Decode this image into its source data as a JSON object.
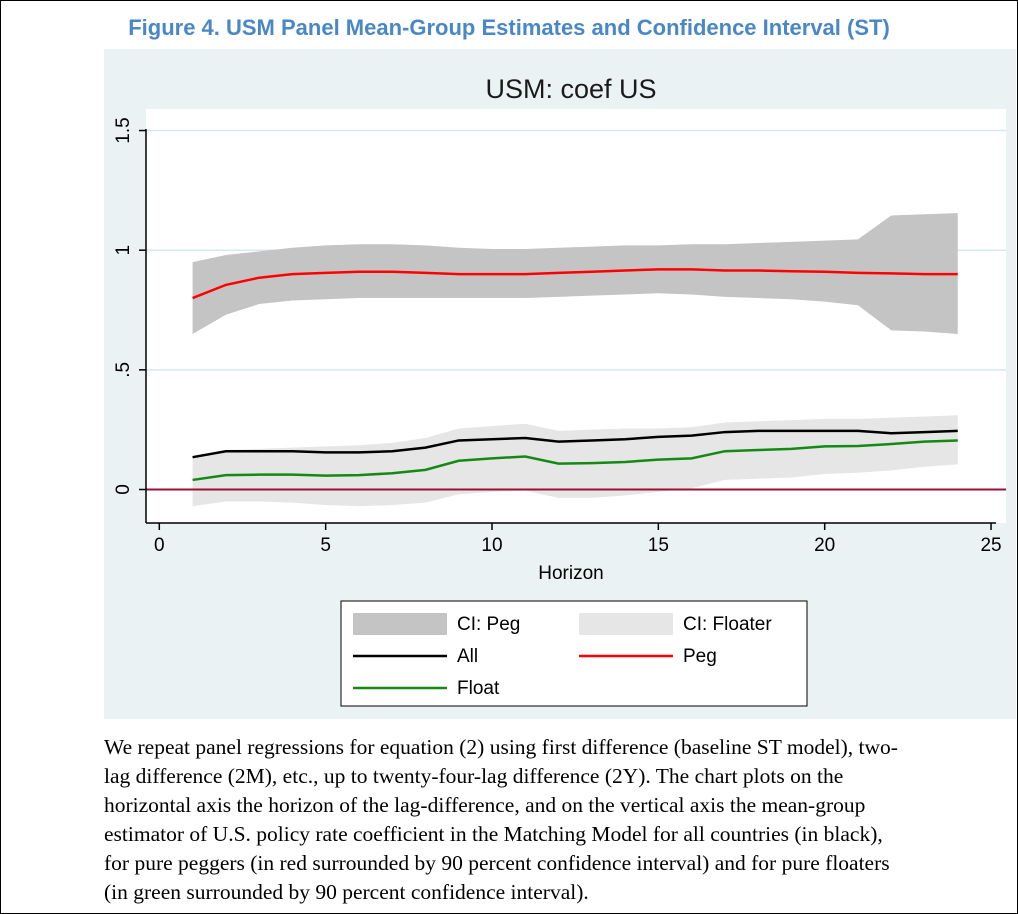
{
  "figure_title": "Figure 4. USM Panel Mean-Group Estimates and Confidence Interval (ST)",
  "chart_data": {
    "type": "line",
    "title": "USM: coef US",
    "x_label": "Horizon",
    "x": [
      1,
      2,
      3,
      4,
      5,
      6,
      7,
      8,
      9,
      10,
      11,
      12,
      13,
      14,
      15,
      16,
      17,
      18,
      19,
      20,
      21,
      22,
      23,
      24
    ],
    "xlim": [
      -0.4,
      25.45
    ],
    "xticks": [
      0,
      5,
      10,
      15,
      20,
      25
    ],
    "ylim": [
      -0.14,
      1.59
    ],
    "yticks": [
      0,
      {
        "value": 0.5,
        "label": ".5"
      },
      1,
      1.5
    ],
    "grid": true,
    "reference_line": {
      "value": 0,
      "color": "#99103a"
    },
    "bands": [
      {
        "name": "CI: Peg",
        "color": "#c4c4c4",
        "lower": [
          0.65,
          0.73,
          0.775,
          0.79,
          0.795,
          0.8,
          0.8,
          0.8,
          0.8,
          0.8,
          0.8,
          0.805,
          0.81,
          0.815,
          0.82,
          0.815,
          0.805,
          0.8,
          0.795,
          0.785,
          0.77,
          0.665,
          0.66,
          0.65
        ],
        "upper": [
          0.95,
          0.98,
          0.995,
          1.01,
          1.02,
          1.025,
          1.025,
          1.02,
          1.01,
          1.005,
          1.005,
          1.01,
          1.015,
          1.02,
          1.02,
          1.025,
          1.025,
          1.03,
          1.035,
          1.04,
          1.045,
          1.145,
          1.15,
          1.155
        ]
      },
      {
        "name": "CI: Floater",
        "color": "#e6e6e6",
        "lower": [
          -0.07,
          -0.05,
          -0.05,
          -0.055,
          -0.065,
          -0.07,
          -0.065,
          -0.055,
          -0.02,
          -0.01,
          -0.005,
          -0.035,
          -0.035,
          -0.025,
          -0.01,
          0.005,
          0.04,
          0.045,
          0.05,
          0.065,
          0.07,
          0.08,
          0.095,
          0.105
        ],
        "upper": [
          0.14,
          0.165,
          0.17,
          0.175,
          0.18,
          0.185,
          0.195,
          0.215,
          0.255,
          0.265,
          0.275,
          0.245,
          0.25,
          0.255,
          0.255,
          0.26,
          0.28,
          0.285,
          0.29,
          0.295,
          0.295,
          0.3,
          0.305,
          0.31
        ]
      }
    ],
    "series": [
      {
        "name": "All",
        "color": "#000000",
        "values": [
          0.135,
          0.16,
          0.16,
          0.16,
          0.155,
          0.155,
          0.16,
          0.175,
          0.205,
          0.21,
          0.215,
          0.2,
          0.205,
          0.21,
          0.22,
          0.225,
          0.24,
          0.245,
          0.245,
          0.245,
          0.245,
          0.235,
          0.24,
          0.245
        ]
      },
      {
        "name": "Peg",
        "color": "#ff0000",
        "values": [
          0.8,
          0.855,
          0.885,
          0.9,
          0.905,
          0.91,
          0.91,
          0.905,
          0.9,
          0.9,
          0.9,
          0.905,
          0.91,
          0.915,
          0.92,
          0.92,
          0.915,
          0.915,
          0.912,
          0.91,
          0.905,
          0.903,
          0.9,
          0.9
        ]
      },
      {
        "name": "Float",
        "color": "#138a13",
        "values": [
          0.04,
          0.06,
          0.062,
          0.062,
          0.058,
          0.06,
          0.068,
          0.082,
          0.12,
          0.13,
          0.138,
          0.108,
          0.11,
          0.115,
          0.125,
          0.13,
          0.16,
          0.165,
          0.17,
          0.18,
          0.182,
          0.19,
          0.2,
          0.205
        ]
      }
    ]
  },
  "caption": [
    "We repeat panel regressions for equation (2) using first difference (baseline ST model), two-",
    "lag difference (2M), etc., up to twenty-four-lag difference (2Y). The chart plots on the",
    "horizontal axis the horizon of the lag-difference, and on the vertical axis the mean-group",
    "estimator of U.S. policy rate coefficient in the Matching Model for all countries (in black),",
    "for pure peggers (in red surrounded by 90 percent confidence interval) and for pure floaters",
    "(in green surrounded by 90 percent confidence interval)."
  ]
}
